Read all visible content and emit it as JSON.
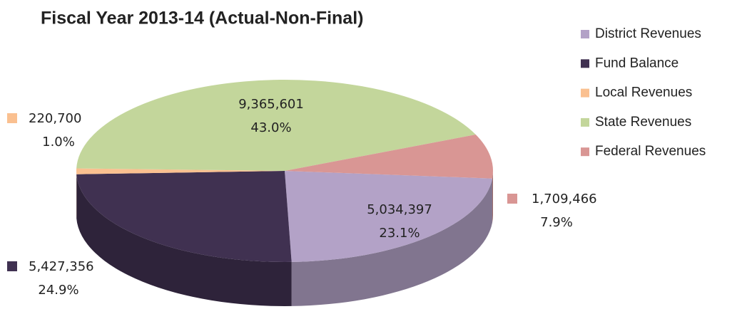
{
  "chart_data": {
    "type": "pie",
    "title": "Fiscal Year 2013-14 (Actual-Non-Final)",
    "categories": [
      "District Revenues",
      "Fund Balance",
      "Local  Revenues",
      "State Revenues",
      "Federal Revenues"
    ],
    "values": [
      5034397,
      5427356,
      220700,
      9365601,
      1709466
    ],
    "value_labels": [
      "5,034,397",
      "5,427,356",
      "220,700",
      "9,365,601",
      "1,709,466"
    ],
    "percent_labels": [
      "23.1%",
      "24.9%",
      "1.0%",
      "43.0%",
      "7.9%"
    ],
    "colors": [
      "#b3a2c7",
      "#403151",
      "#fac090",
      "#c3d69b",
      "#d99694"
    ],
    "legend": "right"
  }
}
